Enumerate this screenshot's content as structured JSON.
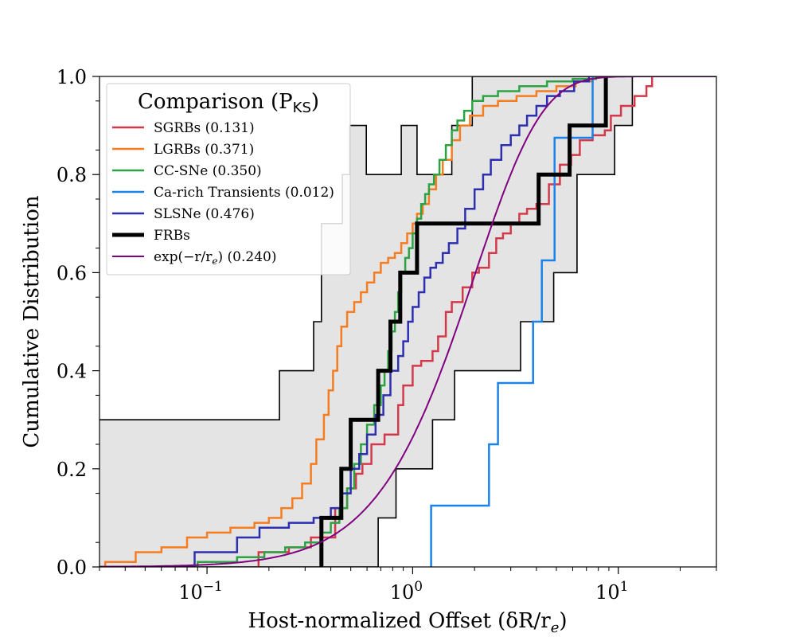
{
  "chart_data": {
    "type": "line",
    "subtype": "cumulative-step",
    "xscale": "log",
    "xlim": [
      0.03,
      30
    ],
    "ylim": [
      0.0,
      1.0
    ],
    "xlabel": "Host-normalized Offset (δR/r",
    "xlabel_sub": "e",
    "xlabel_close": ")",
    "ylabel": "Cumulative Distribution",
    "y_ticks": [
      0.0,
      0.2,
      0.4,
      0.6,
      0.8,
      1.0
    ],
    "y_tick_labels": [
      "0.0",
      "0.2",
      "0.4",
      "0.6",
      "0.8",
      "1.0"
    ],
    "x_major_ticks": [
      0.1,
      1,
      10
    ],
    "x_tick_labels": [
      {
        "base": "10",
        "exp": "−1"
      },
      {
        "base": "10",
        "exp": "0"
      },
      {
        "base": "10",
        "exp": "1"
      }
    ],
    "legend": {
      "title": "Comparison (P",
      "title_sub": "KS",
      "title_close": ")",
      "position": "upper-left"
    },
    "band": {
      "name": "FRB confidence band",
      "color": "#e4e4e4",
      "upper_x": [
        0.03,
        0.225,
        0.225,
        0.33,
        0.33,
        0.36,
        0.36,
        0.455,
        0.455,
        0.495,
        0.495,
        0.595,
        0.595,
        0.88,
        0.88,
        1.05,
        1.05,
        1.55,
        1.55,
        1.95,
        1.95,
        30
      ],
      "upper_y": [
        0.3,
        0.3,
        0.4,
        0.4,
        0.5,
        0.5,
        0.7,
        0.7,
        0.8,
        0.8,
        0.9,
        0.9,
        0.8,
        0.8,
        0.9,
        0.9,
        0.8,
        0.8,
        0.9,
        0.9,
        1.0,
        1.0
      ],
      "lower_x": [
        0.03,
        0.68,
        0.68,
        0.83,
        0.83,
        1.25,
        1.25,
        1.6,
        1.6,
        3.35,
        3.35,
        4.85,
        4.85,
        6.3,
        6.3,
        9.6,
        9.6,
        11.7,
        11.7,
        30
      ],
      "lower_y": [
        0.0,
        0.0,
        0.1,
        0.1,
        0.2,
        0.2,
        0.3,
        0.3,
        0.4,
        0.4,
        0.5,
        0.5,
        0.6,
        0.6,
        0.8,
        0.8,
        0.9,
        0.9,
        1.0,
        1.0
      ]
    },
    "series": [
      {
        "name": "SGRBs (0.131)",
        "color": "#d23a4b",
        "width": 2.5,
        "x": [
          0.178,
          0.25,
          0.32,
          0.42,
          0.48,
          0.53,
          0.57,
          0.63,
          0.73,
          0.85,
          0.9,
          1.0,
          1.1,
          1.25,
          1.33,
          1.45,
          1.55,
          1.75,
          1.95,
          2.1,
          2.35,
          2.55,
          2.75,
          3.0,
          3.3,
          3.6,
          4.0,
          4.6,
          5.2,
          5.9,
          6.5,
          7.5,
          8.6,
          9.2,
          10.3,
          12.0,
          13.7,
          14.6
        ],
        "y": [
          0.03,
          0.04,
          0.06,
          0.12,
          0.16,
          0.19,
          0.21,
          0.25,
          0.27,
          0.33,
          0.37,
          0.41,
          0.42,
          0.44,
          0.47,
          0.52,
          0.54,
          0.57,
          0.6,
          0.61,
          0.64,
          0.67,
          0.68,
          0.7,
          0.72,
          0.73,
          0.74,
          0.78,
          0.82,
          0.84,
          0.87,
          0.88,
          0.89,
          0.92,
          0.94,
          0.96,
          0.98,
          1.0
        ]
      },
      {
        "name": "LGRBs (0.371)",
        "color": "#f57c1f",
        "width": 2.5,
        "x": [
          0.032,
          0.045,
          0.06,
          0.08,
          0.1,
          0.13,
          0.17,
          0.2,
          0.23,
          0.26,
          0.29,
          0.32,
          0.34,
          0.37,
          0.39,
          0.41,
          0.43,
          0.45,
          0.48,
          0.52,
          0.56,
          0.6,
          0.65,
          0.7,
          0.76,
          0.82,
          0.88,
          0.94,
          1.0,
          1.05,
          1.12,
          1.2,
          1.3,
          1.4,
          1.55,
          1.7,
          1.9,
          2.2,
          2.6,
          3.2,
          4.0,
          5.0,
          6.2,
          7.5
        ],
        "y": [
          0.01,
          0.03,
          0.04,
          0.06,
          0.07,
          0.08,
          0.09,
          0.1,
          0.12,
          0.14,
          0.17,
          0.21,
          0.26,
          0.31,
          0.36,
          0.4,
          0.45,
          0.49,
          0.52,
          0.54,
          0.56,
          0.58,
          0.6,
          0.62,
          0.63,
          0.64,
          0.66,
          0.68,
          0.7,
          0.72,
          0.74,
          0.77,
          0.8,
          0.83,
          0.87,
          0.9,
          0.92,
          0.94,
          0.95,
          0.96,
          0.97,
          0.98,
          0.99,
          1.0
        ]
      },
      {
        "name": "CC-SNe (0.350)",
        "color": "#2ca343",
        "width": 2.5,
        "x": [
          0.03,
          0.09,
          0.14,
          0.19,
          0.24,
          0.3,
          0.36,
          0.4,
          0.44,
          0.48,
          0.52,
          0.56,
          0.6,
          0.65,
          0.7,
          0.73,
          0.76,
          0.79,
          0.82,
          0.85,
          0.88,
          0.92,
          0.96,
          1.0,
          1.05,
          1.1,
          1.15,
          1.2,
          1.27,
          1.35,
          1.45,
          1.55,
          1.65,
          1.78,
          1.95,
          2.2,
          2.6,
          3.3,
          4.5,
          6.0,
          7.8
        ],
        "y": [
          0.0,
          0.01,
          0.02,
          0.03,
          0.04,
          0.05,
          0.07,
          0.09,
          0.12,
          0.16,
          0.21,
          0.25,
          0.29,
          0.33,
          0.37,
          0.4,
          0.44,
          0.48,
          0.52,
          0.56,
          0.6,
          0.63,
          0.65,
          0.68,
          0.71,
          0.74,
          0.76,
          0.78,
          0.8,
          0.83,
          0.86,
          0.89,
          0.91,
          0.93,
          0.95,
          0.96,
          0.97,
          0.98,
          0.99,
          0.995,
          1.0
        ]
      },
      {
        "name": "Ca-rich Transients (0.012)",
        "color": "#1a82e8",
        "width": 2.5,
        "x": [
          1.23,
          2.35,
          2.6,
          3.85,
          4.25,
          4.9,
          7.5
        ],
        "y": [
          0.125,
          0.25,
          0.375,
          0.5,
          0.625,
          0.875,
          1.0
        ]
      },
      {
        "name": "SLSNe (0.476)",
        "color": "#2e2fb0",
        "width": 2.5,
        "x": [
          0.087,
          0.14,
          0.18,
          0.25,
          0.33,
          0.4,
          0.45,
          0.5,
          0.55,
          0.6,
          0.66,
          0.72,
          0.78,
          0.85,
          0.9,
          0.95,
          1.0,
          1.07,
          1.14,
          1.22,
          1.3,
          1.4,
          1.5,
          1.65,
          1.8,
          2.0,
          2.2,
          2.4,
          2.7,
          3.0,
          3.3,
          3.6,
          4.0,
          4.5,
          5.2,
          6.1,
          7.2
        ],
        "y": [
          0.03,
          0.06,
          0.08,
          0.09,
          0.1,
          0.12,
          0.15,
          0.2,
          0.23,
          0.27,
          0.31,
          0.35,
          0.4,
          0.43,
          0.46,
          0.5,
          0.53,
          0.56,
          0.59,
          0.61,
          0.62,
          0.64,
          0.66,
          0.69,
          0.73,
          0.77,
          0.8,
          0.83,
          0.86,
          0.88,
          0.9,
          0.92,
          0.94,
          0.96,
          0.97,
          0.99,
          1.0
        ]
      },
      {
        "name": "FRBs",
        "color": "#000000",
        "width": 5,
        "x": [
          0.36,
          0.45,
          0.5,
          0.68,
          0.78,
          0.87,
          1.05,
          4.1,
          5.8,
          8.7
        ],
        "y": [
          0.1,
          0.2,
          0.3,
          0.4,
          0.5,
          0.6,
          0.7,
          0.8,
          0.9,
          1.0
        ]
      },
      {
        "name": "exp(−r/r",
        "name_sub": "e",
        "name_close": ") (0.240)",
        "color": "#800080",
        "width": 2,
        "curve": "1-(1+x)*exp(-x)"
      }
    ]
  }
}
